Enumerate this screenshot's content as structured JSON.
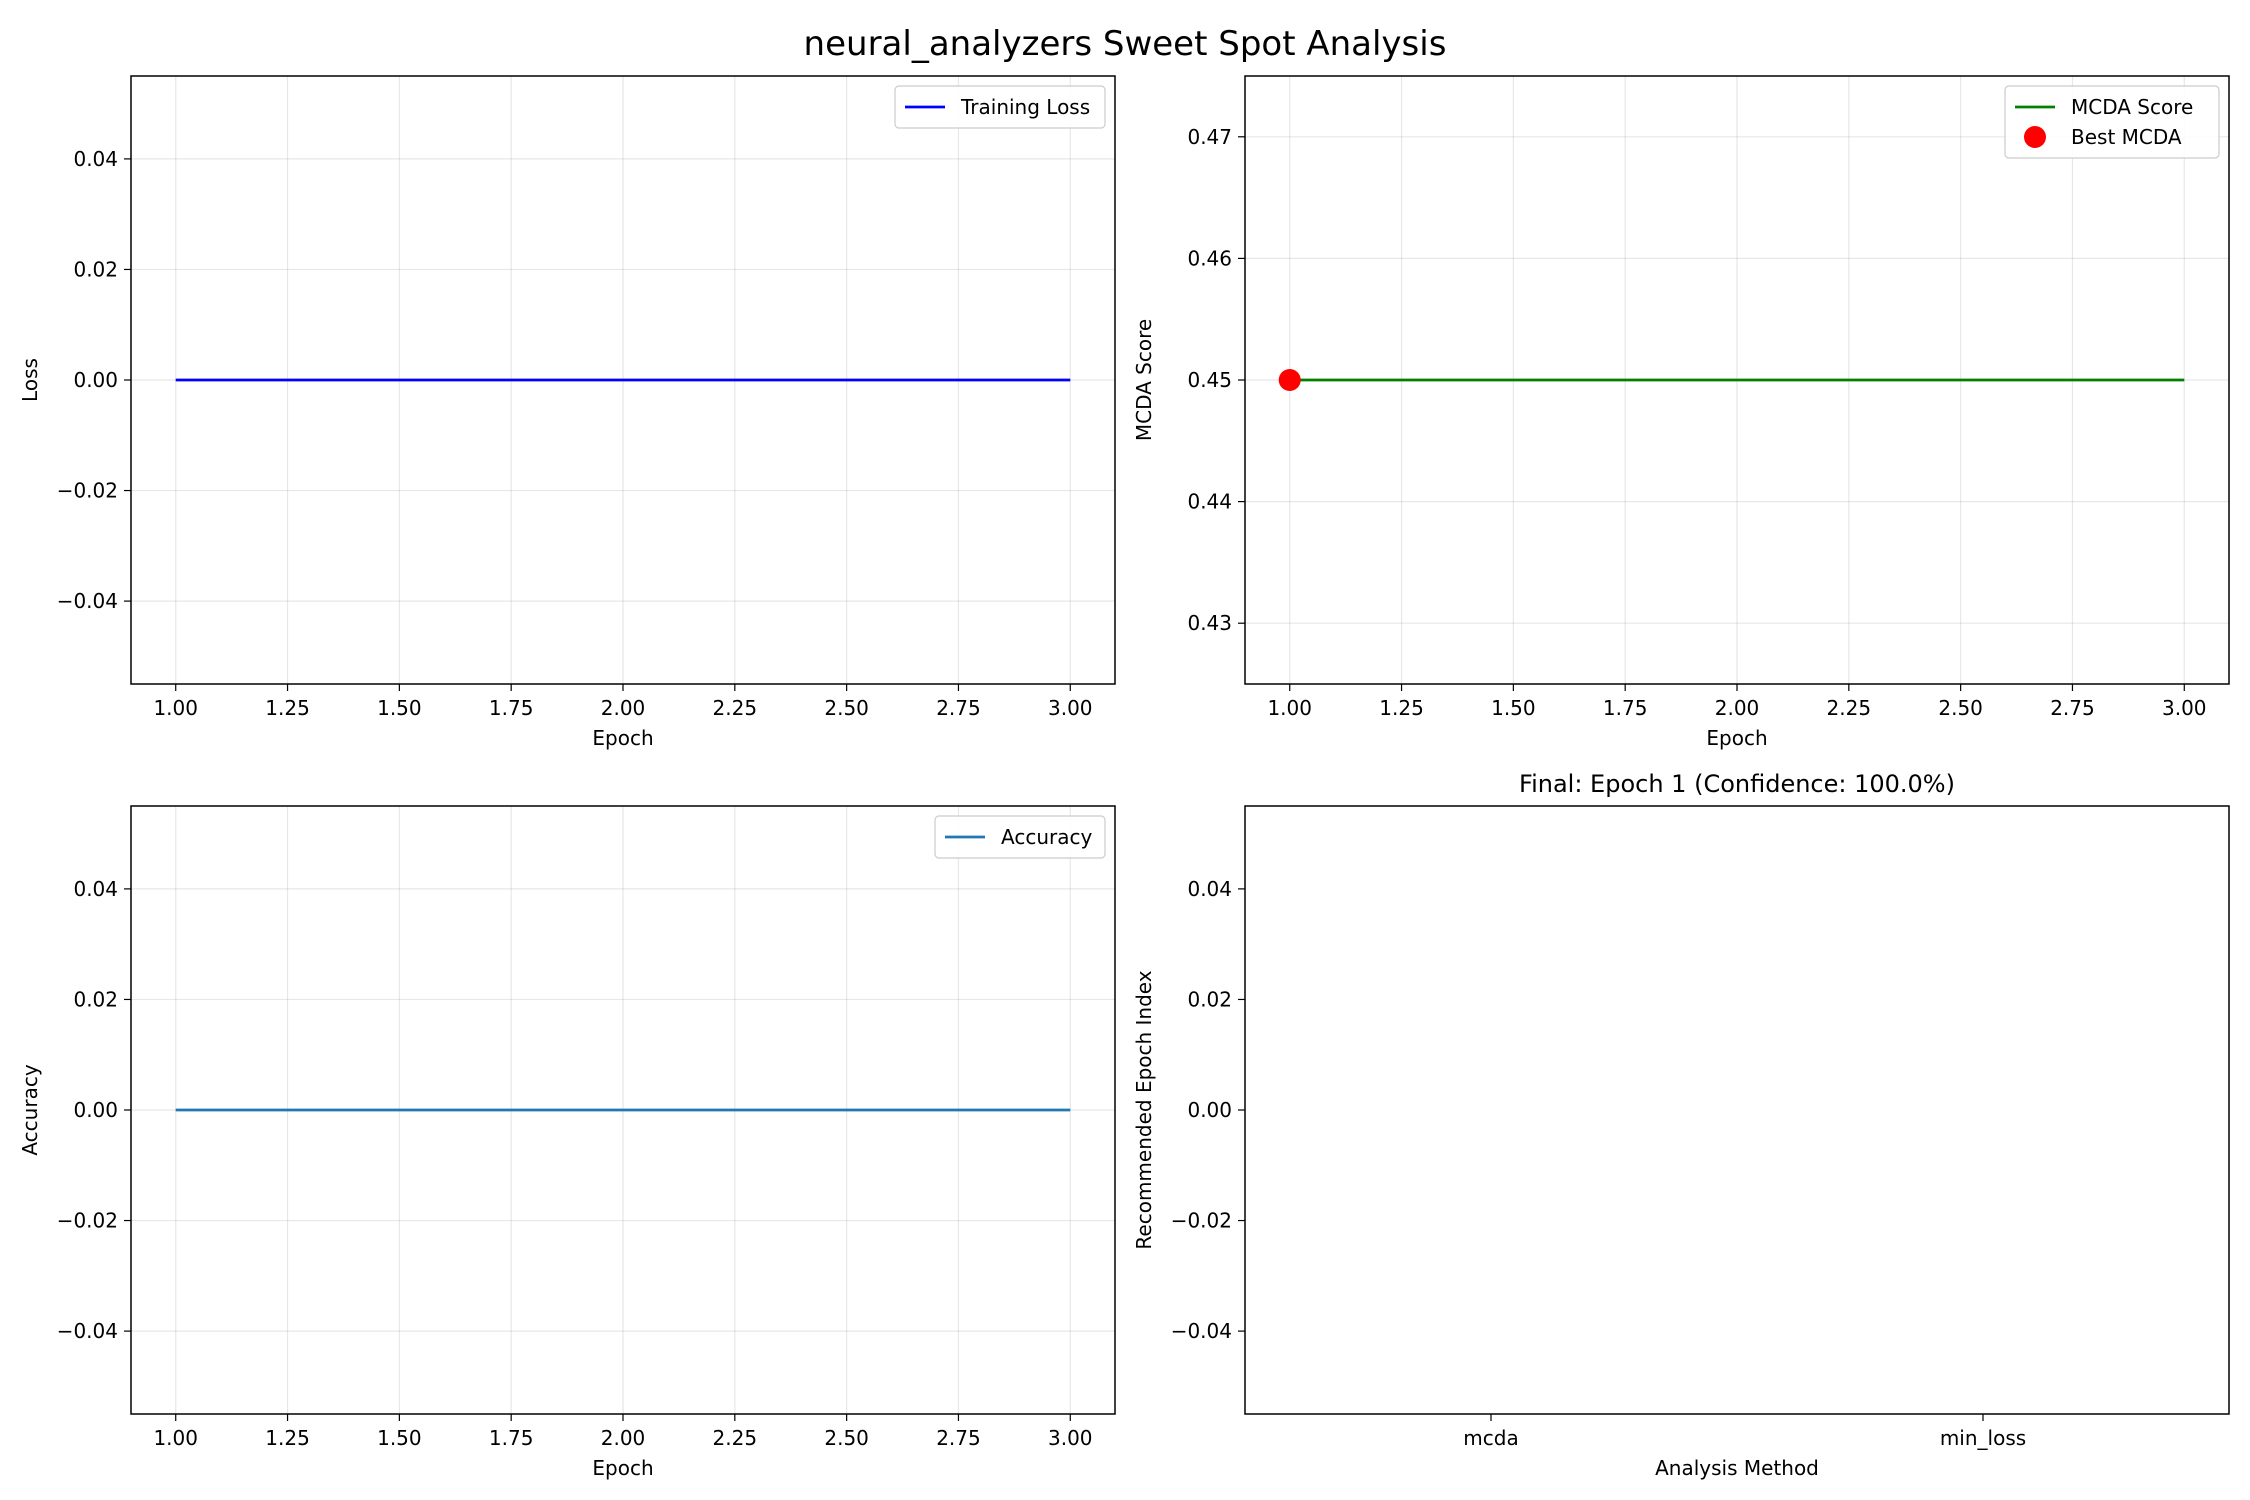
{
  "figure_title": "neural_analyzers Sweet Spot Analysis",
  "chart_data": [
    {
      "id": "loss",
      "type": "line",
      "title": "",
      "xlabel": "Epoch",
      "ylabel": "Loss",
      "xlim": [
        0.9,
        3.1
      ],
      "ylim": [
        -0.055,
        0.055
      ],
      "xticks": [
        1.0,
        1.25,
        1.5,
        1.75,
        2.0,
        2.25,
        2.5,
        2.75,
        3.0
      ],
      "xtick_labels": [
        "1.00",
        "1.25",
        "1.50",
        "1.75",
        "2.00",
        "2.25",
        "2.50",
        "2.75",
        "3.00"
      ],
      "yticks": [
        -0.04,
        -0.02,
        0.0,
        0.02,
        0.04
      ],
      "ytick_labels": [
        "−0.04",
        "−0.02",
        "0.00",
        "0.02",
        "0.04"
      ],
      "grid": true,
      "legend": "top-right",
      "series": [
        {
          "name": "Training Loss",
          "kind": "line",
          "color": "#0000ff",
          "x": [
            1,
            2,
            3
          ],
          "y": [
            0,
            0,
            0
          ]
        }
      ]
    },
    {
      "id": "mcda",
      "type": "line",
      "title": "",
      "xlabel": "Epoch",
      "ylabel": "MCDA Score",
      "xlim": [
        0.9,
        3.1
      ],
      "ylim": [
        0.425,
        0.475
      ],
      "xticks": [
        1.0,
        1.25,
        1.5,
        1.75,
        2.0,
        2.25,
        2.5,
        2.75,
        3.0
      ],
      "xtick_labels": [
        "1.00",
        "1.25",
        "1.50",
        "1.75",
        "2.00",
        "2.25",
        "2.50",
        "2.75",
        "3.00"
      ],
      "yticks": [
        0.43,
        0.44,
        0.45,
        0.46,
        0.47
      ],
      "ytick_labels": [
        "0.43",
        "0.44",
        "0.45",
        "0.46",
        "0.47"
      ],
      "grid": true,
      "legend": "top-right",
      "series": [
        {
          "name": "MCDA Score",
          "kind": "line",
          "color": "#008000",
          "x": [
            1,
            2,
            3
          ],
          "y": [
            0.45,
            0.45,
            0.45
          ]
        },
        {
          "name": "Best MCDA",
          "kind": "scatter",
          "color": "#ff0000",
          "x": [
            1
          ],
          "y": [
            0.45
          ]
        }
      ]
    },
    {
      "id": "accuracy",
      "type": "line",
      "title": "",
      "xlabel": "Epoch",
      "ylabel": "Accuracy",
      "xlim": [
        0.9,
        3.1
      ],
      "ylim": [
        -0.055,
        0.055
      ],
      "xticks": [
        1.0,
        1.25,
        1.5,
        1.75,
        2.0,
        2.25,
        2.5,
        2.75,
        3.0
      ],
      "xtick_labels": [
        "1.00",
        "1.25",
        "1.50",
        "1.75",
        "2.00",
        "2.25",
        "2.50",
        "2.75",
        "3.00"
      ],
      "yticks": [
        -0.04,
        -0.02,
        0.0,
        0.02,
        0.04
      ],
      "ytick_labels": [
        "−0.04",
        "−0.02",
        "0.00",
        "0.02",
        "0.04"
      ],
      "grid": true,
      "legend": "top-right",
      "series": [
        {
          "name": "Accuracy",
          "kind": "line",
          "color": "#1f77b4",
          "x": [
            1,
            2,
            3
          ],
          "y": [
            0,
            0,
            0
          ]
        }
      ]
    },
    {
      "id": "recommend",
      "type": "bar",
      "title": "Final: Epoch 1 (Confidence: 100.0%)",
      "xlabel": "Analysis Method",
      "ylabel": "Recommended Epoch Index",
      "categories": [
        "mcda",
        "min_loss"
      ],
      "values": [
        0,
        0
      ],
      "xlim": [
        -0.5,
        1.5
      ],
      "ylim": [
        -0.055,
        0.055
      ],
      "yticks": [
        -0.04,
        -0.02,
        0.0,
        0.02,
        0.04
      ],
      "ytick_labels": [
        "−0.04",
        "−0.02",
        "0.00",
        "0.02",
        "0.04"
      ],
      "grid": false,
      "legend": "none"
    }
  ]
}
